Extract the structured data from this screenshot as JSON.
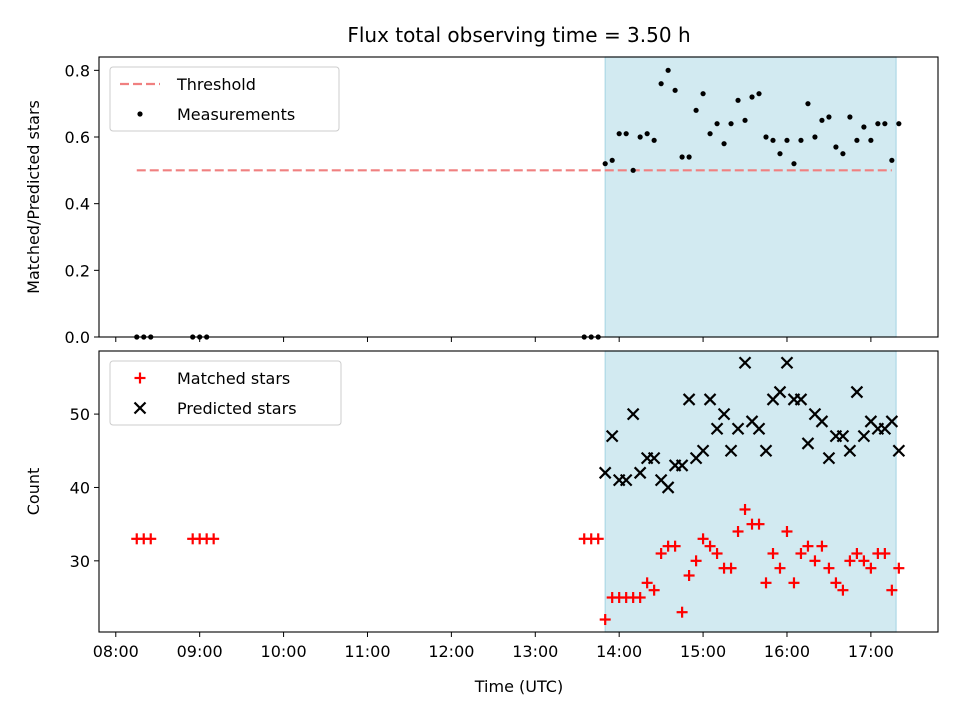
{
  "chart_data": {
    "title": "Flux total observing time = 3.50 h",
    "xlabel": "Time (UTC)",
    "x_ticks": [
      "08:00",
      "09:00",
      "10:00",
      "11:00",
      "12:00",
      "13:00",
      "14:00",
      "15:00",
      "16:00",
      "17:00"
    ],
    "xlim": [
      "07:48",
      "17:48"
    ],
    "shaded_span": [
      "13:50",
      "17:18"
    ],
    "shaded_color": "#add8e6",
    "panels": [
      {
        "type": "scatter",
        "ylabel": "Matched/Predicted stars",
        "ylim": [
          0,
          0.84
        ],
        "y_ticks": [
          "0.0",
          "0.2",
          "0.4",
          "0.6",
          "0.8"
        ],
        "legend": {
          "position": "top-left",
          "entries": [
            "Threshold",
            "Measurements"
          ]
        },
        "threshold": {
          "name": "Threshold",
          "value": 0.5,
          "x_range": [
            "08:15",
            "17:15"
          ],
          "color": "#f08080"
        },
        "series": [
          {
            "name": "Measurements",
            "marker": "dot",
            "color": "#000000",
            "points": [
              [
                "08:15",
                0.0
              ],
              [
                "08:20",
                0.0
              ],
              [
                "08:25",
                0.0
              ],
              [
                "08:55",
                0.0
              ],
              [
                "09:00",
                0.0
              ],
              [
                "09:05",
                0.0
              ],
              [
                "13:35",
                0.0
              ],
              [
                "13:40",
                0.0
              ],
              [
                "13:45",
                0.0
              ],
              [
                "13:50",
                0.52
              ],
              [
                "13:55",
                0.53
              ],
              [
                "14:00",
                0.61
              ],
              [
                "14:05",
                0.61
              ],
              [
                "14:10",
                0.5
              ],
              [
                "14:15",
                0.6
              ],
              [
                "14:20",
                0.61
              ],
              [
                "14:25",
                0.59
              ],
              [
                "14:30",
                0.76
              ],
              [
                "14:35",
                0.8
              ],
              [
                "14:40",
                0.74
              ],
              [
                "14:45",
                0.54
              ],
              [
                "14:50",
                0.54
              ],
              [
                "14:55",
                0.68
              ],
              [
                "15:00",
                0.73
              ],
              [
                "15:05",
                0.61
              ],
              [
                "15:10",
                0.64
              ],
              [
                "15:15",
                0.58
              ],
              [
                "15:20",
                0.64
              ],
              [
                "15:25",
                0.71
              ],
              [
                "15:30",
                0.65
              ],
              [
                "15:35",
                0.72
              ],
              [
                "15:40",
                0.73
              ],
              [
                "15:45",
                0.6
              ],
              [
                "15:50",
                0.59
              ],
              [
                "15:55",
                0.55
              ],
              [
                "16:00",
                0.59
              ],
              [
                "16:05",
                0.52
              ],
              [
                "16:10",
                0.59
              ],
              [
                "16:15",
                0.7
              ],
              [
                "16:20",
                0.6
              ],
              [
                "16:25",
                0.65
              ],
              [
                "16:30",
                0.66
              ],
              [
                "16:35",
                0.57
              ],
              [
                "16:40",
                0.55
              ],
              [
                "16:45",
                0.66
              ],
              [
                "16:50",
                0.59
              ],
              [
                "16:55",
                0.63
              ],
              [
                "17:00",
                0.59
              ],
              [
                "17:05",
                0.64
              ],
              [
                "17:10",
                0.64
              ],
              [
                "17:15",
                0.53
              ],
              [
                "17:20",
                0.64
              ]
            ]
          }
        ]
      },
      {
        "type": "scatter",
        "ylabel": "Count",
        "ylim": [
          20.3,
          58.6
        ],
        "y_ticks": [
          "30",
          "40",
          "50"
        ],
        "legend": {
          "position": "top-left",
          "entries": [
            "Matched stars",
            "Predicted stars"
          ]
        },
        "series": [
          {
            "name": "Matched stars",
            "marker": "plus",
            "color": "#ff0000",
            "points": [
              [
                "08:15",
                33
              ],
              [
                "08:20",
                33
              ],
              [
                "08:25",
                33
              ],
              [
                "08:55",
                33
              ],
              [
                "09:00",
                33
              ],
              [
                "09:05",
                33
              ],
              [
                "09:10",
                33
              ],
              [
                "13:35",
                33
              ],
              [
                "13:40",
                33
              ],
              [
                "13:45",
                33
              ],
              [
                "13:50",
                22
              ],
              [
                "13:55",
                25
              ],
              [
                "14:00",
                25
              ],
              [
                "14:05",
                25
              ],
              [
                "14:10",
                25
              ],
              [
                "14:15",
                25
              ],
              [
                "14:20",
                27
              ],
              [
                "14:25",
                26
              ],
              [
                "14:30",
                31
              ],
              [
                "14:35",
                32
              ],
              [
                "14:40",
                32
              ],
              [
                "14:45",
                23
              ],
              [
                "14:50",
                28
              ],
              [
                "14:55",
                30
              ],
              [
                "15:00",
                33
              ],
              [
                "15:05",
                32
              ],
              [
                "15:10",
                31
              ],
              [
                "15:15",
                29
              ],
              [
                "15:20",
                29
              ],
              [
                "15:25",
                34
              ],
              [
                "15:30",
                37
              ],
              [
                "15:35",
                35
              ],
              [
                "15:40",
                35
              ],
              [
                "15:45",
                27
              ],
              [
                "15:50",
                31
              ],
              [
                "15:55",
                29
              ],
              [
                "16:00",
                34
              ],
              [
                "16:05",
                27
              ],
              [
                "16:10",
                31
              ],
              [
                "16:15",
                32
              ],
              [
                "16:20",
                30
              ],
              [
                "16:25",
                32
              ],
              [
                "16:30",
                29
              ],
              [
                "16:35",
                27
              ],
              [
                "16:40",
                26
              ],
              [
                "16:45",
                30
              ],
              [
                "16:50",
                31
              ],
              [
                "16:55",
                30
              ],
              [
                "17:00",
                29
              ],
              [
                "17:05",
                31
              ],
              [
                "17:10",
                31
              ],
              [
                "17:15",
                26
              ],
              [
                "17:20",
                29
              ]
            ]
          },
          {
            "name": "Predicted stars",
            "marker": "x",
            "color": "#000000",
            "points": [
              [
                "13:50",
                42
              ],
              [
                "13:55",
                47
              ],
              [
                "14:00",
                41
              ],
              [
                "14:05",
                41
              ],
              [
                "14:10",
                50
              ],
              [
                "14:15",
                42
              ],
              [
                "14:20",
                44
              ],
              [
                "14:25",
                44
              ],
              [
                "14:30",
                41
              ],
              [
                "14:35",
                40
              ],
              [
                "14:40",
                43
              ],
              [
                "14:45",
                43
              ],
              [
                "14:50",
                52
              ],
              [
                "14:55",
                44
              ],
              [
                "15:00",
                45
              ],
              [
                "15:05",
                52
              ],
              [
                "15:10",
                48
              ],
              [
                "15:15",
                50
              ],
              [
                "15:20",
                45
              ],
              [
                "15:25",
                48
              ],
              [
                "15:30",
                57
              ],
              [
                "15:35",
                49
              ],
              [
                "15:40",
                48
              ],
              [
                "15:45",
                45
              ],
              [
                "15:50",
                52
              ],
              [
                "15:55",
                53
              ],
              [
                "16:00",
                57
              ],
              [
                "16:05",
                52
              ],
              [
                "16:10",
                52
              ],
              [
                "16:15",
                46
              ],
              [
                "16:20",
                50
              ],
              [
                "16:25",
                49
              ],
              [
                "16:30",
                44
              ],
              [
                "16:35",
                47
              ],
              [
                "16:40",
                47
              ],
              [
                "16:45",
                45
              ],
              [
                "16:50",
                53
              ],
              [
                "16:55",
                47
              ],
              [
                "17:00",
                49
              ],
              [
                "17:05",
                48
              ],
              [
                "17:10",
                48
              ],
              [
                "17:15",
                49
              ],
              [
                "17:20",
                45
              ]
            ]
          }
        ]
      }
    ]
  }
}
